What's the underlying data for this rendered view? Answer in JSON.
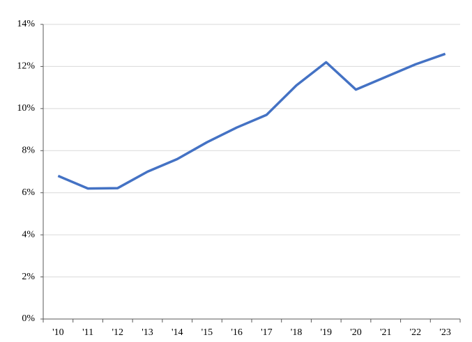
{
  "chart_data": {
    "type": "line",
    "categories": [
      "'10",
      "'11",
      "'12",
      "'13",
      "'14",
      "'15",
      "'16",
      "'17",
      "'18",
      "'19",
      "'20",
      "'21",
      "'22",
      "'23"
    ],
    "series": [
      {
        "color": "#4472c4",
        "values": [
          6.8,
          6.2,
          6.22,
          7.0,
          7.6,
          8.4,
          9.1,
          9.7,
          11.1,
          12.2,
          10.9,
          11.5,
          12.1,
          12.6
        ]
      }
    ],
    "ylim": [
      0,
      14
    ],
    "yticks": [
      {
        "value": 0,
        "label": "0%"
      },
      {
        "value": 2,
        "label": "2%"
      },
      {
        "value": 4,
        "label": "4%"
      },
      {
        "value": 6,
        "label": "6%"
      },
      {
        "value": 8,
        "label": "8%"
      },
      {
        "value": 10,
        "label": "10%"
      },
      {
        "value": 12,
        "label": "12%"
      },
      {
        "value": 14,
        "label": "14%"
      }
    ],
    "grid": true
  }
}
